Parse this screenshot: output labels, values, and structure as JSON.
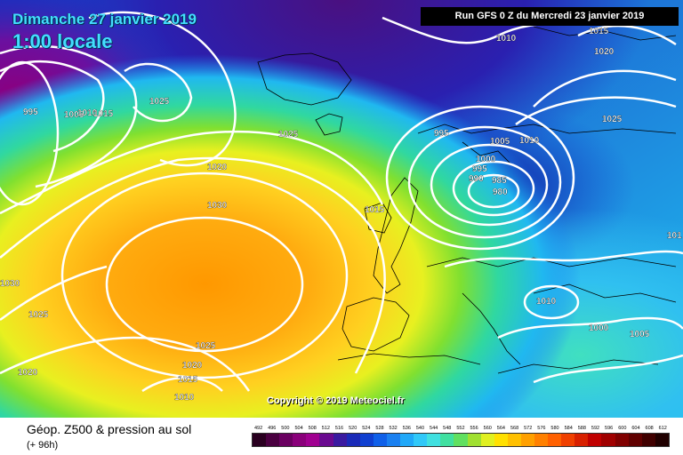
{
  "header": {
    "date_title": "Dimanche 27 janvier 2019",
    "time_title": "1:00 locale",
    "run_info": "Run GFS 0 Z du Mercredi 23 janvier 2019"
  },
  "footer": {
    "legend_title": "Géop. Z500 & pression au sol",
    "legend_sub": "(+ 96h)",
    "copyright": "Copyright © 2019 Meteociel.fr"
  },
  "isobar_labels": [
    {
      "text": "995"
    },
    {
      "text": "1005"
    },
    {
      "text": "1010"
    },
    {
      "text": "1015"
    },
    {
      "text": "1025"
    },
    {
      "text": "1025"
    },
    {
      "text": "1020"
    },
    {
      "text": "1030"
    },
    {
      "text": "1030"
    },
    {
      "text": "1025"
    },
    {
      "text": "1020"
    },
    {
      "text": "1025"
    },
    {
      "text": "1020"
    },
    {
      "text": "1015"
    },
    {
      "text": "1010"
    },
    {
      "text": "1015"
    },
    {
      "text": "995"
    },
    {
      "text": "1005"
    },
    {
      "text": "1010"
    },
    {
      "text": "1000"
    },
    {
      "text": "995"
    },
    {
      "text": "990"
    },
    {
      "text": "985"
    },
    {
      "text": "980"
    },
    {
      "text": "1010"
    },
    {
      "text": "1015"
    },
    {
      "text": "1020"
    },
    {
      "text": "1025"
    },
    {
      "text": "1010"
    },
    {
      "text": "1000"
    },
    {
      "text": "1005"
    },
    {
      "text": "101"
    }
  ],
  "scale": {
    "labels": [
      "492",
      "496",
      "500",
      "504",
      "508",
      "512",
      "516",
      "520",
      "524",
      "528",
      "532",
      "536",
      "540",
      "544",
      "548",
      "552",
      "556",
      "560",
      "564",
      "568",
      "572",
      "576",
      "580",
      "584",
      "588",
      "592",
      "596",
      "600",
      "604",
      "608",
      "612"
    ],
    "colors": [
      "#2a0020",
      "#4a0040",
      "#6a0060",
      "#8a007a",
      "#a00090",
      "#6a0a90",
      "#3a1aa0",
      "#1a2ab8",
      "#1040d0",
      "#1060e8",
      "#1a80f0",
      "#20a8f8",
      "#30c8f8",
      "#40e0e0",
      "#40e0a0",
      "#60e060",
      "#a0e030",
      "#e0f020",
      "#ffe000",
      "#ffc000",
      "#ffa000",
      "#ff8000",
      "#ff6000",
      "#f04000",
      "#d82000",
      "#c00000",
      "#a00000",
      "#800000",
      "#600000",
      "#400000",
      "#200000"
    ]
  },
  "colors": {
    "title_cyan": "#44ddff",
    "isobar": "#ffffff",
    "coast": "#000000"
  }
}
